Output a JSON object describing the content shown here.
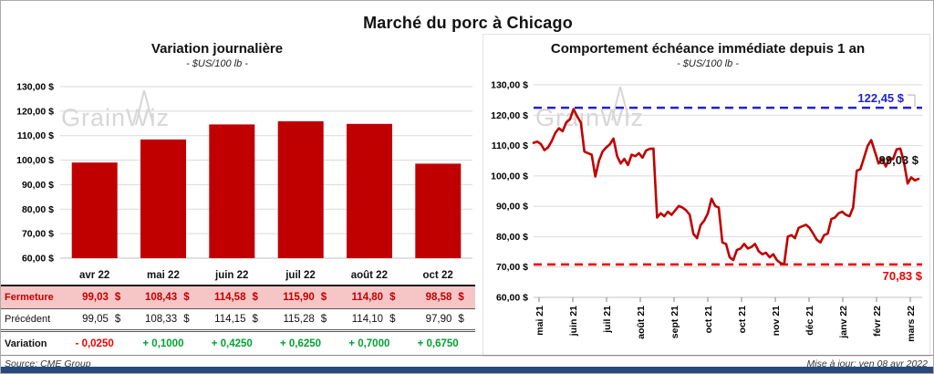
{
  "page": {
    "title": "Marché du porc à Chicago",
    "watermark": "GrainWiz",
    "footer_source": "Source: CME Group",
    "footer_updated": "Mise à jour: ven 08 avr 2022"
  },
  "colors": {
    "bar_red": "#C00000",
    "line_red": "#C00000",
    "dash_blue": "#2222CC",
    "dash_red": "#EE0000",
    "neg": "#EE0000",
    "pos": "#00A231",
    "grid": "#DADADA",
    "axis": "#BFBFBF",
    "pink_row": "#F6C5C5"
  },
  "chart_data": [
    {
      "type": "bar",
      "title": "Variation  journalière",
      "subtitle": "- $US/100 lb -",
      "categories": [
        "avr 22",
        "mai 22",
        "juin 22",
        "juil 22",
        "août 22",
        "oct 22"
      ],
      "values": [
        99.03,
        108.43,
        114.58,
        115.9,
        114.8,
        98.58
      ],
      "ylim": [
        60,
        130
      ],
      "ytick_step": 10,
      "ytick_labels": [
        "130,00 $",
        "120,00 $",
        "110,00 $",
        "100,00 $",
        "90,00 $",
        "80,00 $",
        "70,00 $",
        "60,00 $"
      ],
      "grid": true,
      "bar_color": "#C00000"
    },
    {
      "type": "line",
      "title": "Comportement  échéance  immédiate  depuis  1 an",
      "subtitle": "- $US/100 lb -",
      "ylim": [
        60,
        130
      ],
      "ytick_step": 10,
      "ytick_labels": [
        "130,00 $",
        "120,00 $",
        "110,00 $",
        "100,00 $",
        "90,00 $",
        "80,00 $",
        "70,00 $",
        "60,00 $"
      ],
      "x_tick_labels": [
        "mai 21",
        "juin 21",
        "juil 21",
        "août 21",
        "sept 21",
        "oct 21",
        "oct 21",
        "nov 21",
        "déc 21",
        "janv 22",
        "févr 22",
        "mars 22"
      ],
      "grid": true,
      "hlines": [
        {
          "value": 122.45,
          "label": "122,45 $",
          "color": "#2222CC"
        },
        {
          "value": 70.83,
          "label": "70,83 $",
          "color": "#EE0000"
        }
      ],
      "end_label": {
        "text": "99,03 $",
        "value": 99.03
      },
      "series": [
        {
          "name": "échéance immédiate",
          "color": "#C00000",
          "values": [
            110.9,
            111.3,
            110.5,
            108.5,
            109.4,
            111.5,
            114.2,
            115.7,
            114.7,
            117.6,
            118.6,
            122.0,
            119.6,
            117.6,
            108.0,
            107.5,
            107.0,
            99.8,
            105.0,
            108.0,
            109.4,
            110.4,
            112.3,
            106.5,
            104.1,
            105.6,
            103.6,
            107.0,
            106.5,
            107.5,
            106.0,
            108.4,
            108.9,
            109.0,
            86.3,
            87.7,
            86.7,
            88.2,
            87.2,
            88.7,
            90.1,
            89.6,
            88.7,
            87.2,
            80.9,
            79.5,
            83.8,
            85.3,
            87.7,
            92.5,
            90.1,
            89.6,
            78.1,
            77.6,
            73.2,
            72.3,
            75.6,
            76.1,
            77.6,
            76.1,
            76.6,
            77.6,
            75.2,
            74.2,
            74.7,
            73.2,
            74.2,
            72.3,
            71.3,
            70.9,
            80.0,
            80.5,
            79.5,
            82.9,
            83.4,
            83.9,
            82.9,
            81.0,
            79.0,
            78.1,
            80.5,
            81.0,
            85.8,
            86.3,
            87.7,
            88.2,
            87.2,
            86.7,
            89.6,
            101.7,
            102.2,
            106.0,
            109.9,
            111.8,
            108.0,
            104.1,
            105.6,
            103.1,
            106.0,
            105.5,
            108.8,
            109.0,
            104.5,
            97.5,
            99.5,
            98.5,
            99.03
          ]
        }
      ]
    }
  ],
  "table": {
    "rows": [
      {
        "label": "Fermeture",
        "values": [
          "99,03 $",
          "108,43 $",
          "114,58 $",
          "115,90 $",
          "114,80 $",
          "98,58 $"
        ]
      },
      {
        "label": "Précédent",
        "values": [
          "99,05 $",
          "108,33 $",
          "114,15 $",
          "115,28 $",
          "114,10 $",
          "97,90 $"
        ]
      },
      {
        "label": "Variation",
        "values": [
          "- 0,0250",
          "+ 0,1000",
          "+ 0,4250",
          "+ 0,6250",
          "+ 0,7000",
          "+ 0,6750"
        ]
      }
    ]
  }
}
